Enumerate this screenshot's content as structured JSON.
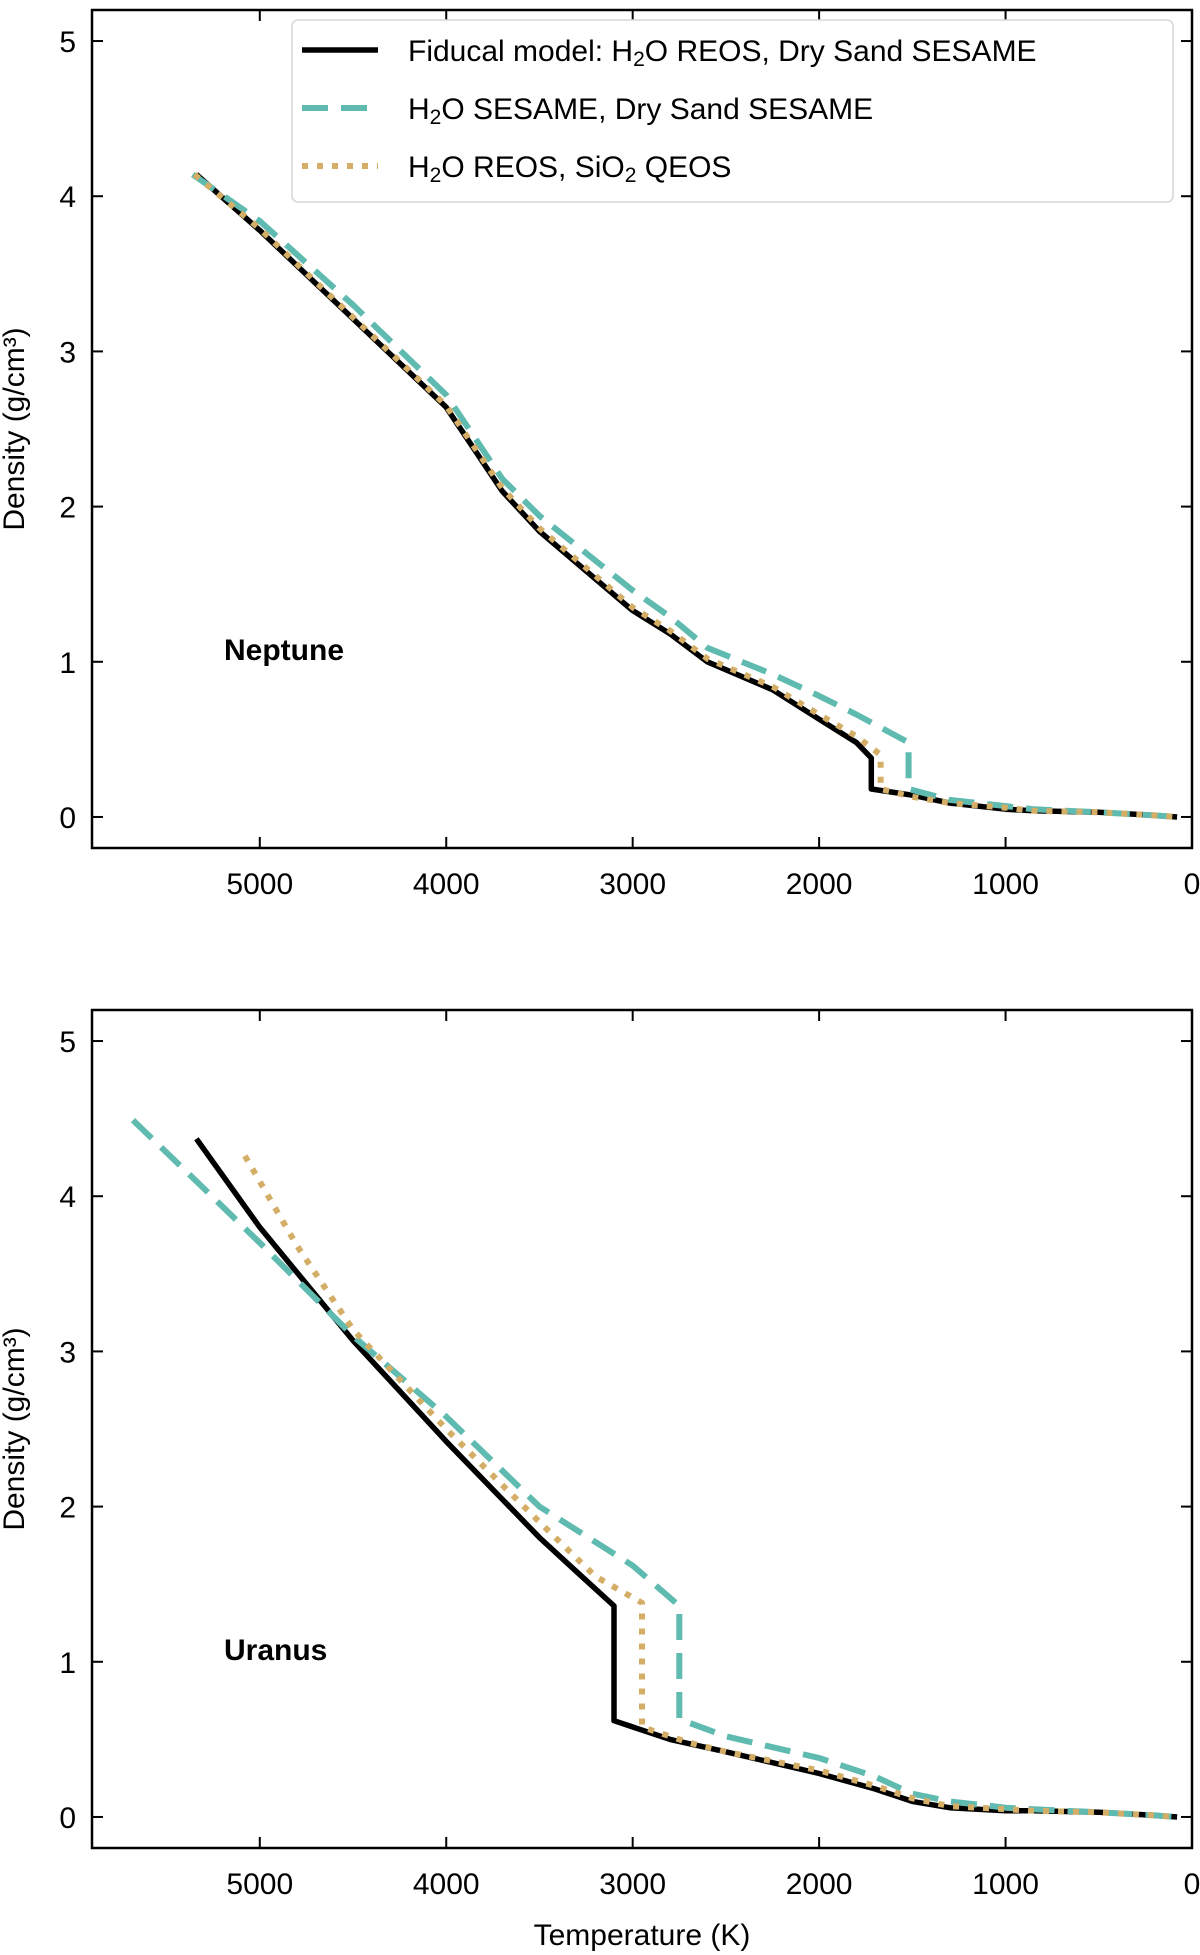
{
  "chart_data": [
    {
      "type": "line",
      "panel_label": "Neptune",
      "xlabel": "",
      "ylabel": "Density (g/cm³)",
      "xlim": [
        5900,
        0
      ],
      "ylim": [
        -0.2,
        5.2
      ],
      "x_ticks": [
        5000,
        4000,
        3000,
        2000,
        1000,
        0
      ],
      "y_ticks": [
        0,
        1,
        2,
        3,
        4,
        5
      ],
      "grid": false,
      "legend_placement": "top-right",
      "legend": [
        {
          "pre": "Fiducal model: H",
          "sub": "2",
          "post": "O REOS, Dry Sand SESAME"
        },
        {
          "pre": "H",
          "sub": "2",
          "post": "O SESAME, Dry Sand SESAME"
        },
        {
          "pre": "H",
          "sub": "2",
          "post": "O REOS, SiO",
          "sub2": "2",
          "post2": " QEOS"
        }
      ],
      "series": [
        {
          "color": "#000000",
          "dash": "solid",
          "points": [
            [
              5340,
              4.14
            ],
            [
              5000,
              3.78
            ],
            [
              4500,
              3.21
            ],
            [
              4000,
              2.64
            ],
            [
              3700,
              2.1
            ],
            [
              3500,
              1.84
            ],
            [
              3000,
              1.33
            ],
            [
              2800,
              1.18
            ],
            [
              2600,
              1.0
            ],
            [
              2250,
              0.82
            ],
            [
              2000,
              0.63
            ],
            [
              1800,
              0.48
            ],
            [
              1720,
              0.38
            ],
            [
              1720,
              0.18
            ],
            [
              1500,
              0.14
            ],
            [
              1300,
              0.09
            ],
            [
              1000,
              0.05
            ],
            [
              850,
              0.04
            ],
            [
              500,
              0.03
            ],
            [
              200,
              0.01
            ],
            [
              80,
              0.0
            ]
          ]
        },
        {
          "color": "#5fbab0",
          "dash": "dashed",
          "points": [
            [
              5360,
              4.14
            ],
            [
              5000,
              3.84
            ],
            [
              4500,
              3.3
            ],
            [
              4000,
              2.72
            ],
            [
              3700,
              2.18
            ],
            [
              3500,
              1.94
            ],
            [
              3000,
              1.46
            ],
            [
              2800,
              1.29
            ],
            [
              2600,
              1.09
            ],
            [
              2250,
              0.92
            ],
            [
              2000,
              0.78
            ],
            [
              1800,
              0.66
            ],
            [
              1520,
              0.48
            ],
            [
              1520,
              0.18
            ],
            [
              1300,
              0.11
            ],
            [
              1000,
              0.07
            ],
            [
              850,
              0.05
            ],
            [
              500,
              0.03
            ],
            [
              200,
              0.01
            ],
            [
              80,
              0.0
            ]
          ]
        },
        {
          "color": "#d4ae66",
          "dash": "dotted",
          "points": [
            [
              5350,
              4.14
            ],
            [
              5000,
              3.79
            ],
            [
              4500,
              3.22
            ],
            [
              4000,
              2.65
            ],
            [
              3700,
              2.12
            ],
            [
              3500,
              1.86
            ],
            [
              3000,
              1.35
            ],
            [
              2800,
              1.2
            ],
            [
              2600,
              1.02
            ],
            [
              2250,
              0.84
            ],
            [
              2000,
              0.66
            ],
            [
              1800,
              0.52
            ],
            [
              1670,
              0.4
            ],
            [
              1670,
              0.18
            ],
            [
              1500,
              0.13
            ],
            [
              1300,
              0.09
            ],
            [
              1000,
              0.06
            ],
            [
              850,
              0.04
            ],
            [
              500,
              0.03
            ],
            [
              200,
              0.01
            ],
            [
              80,
              0.0
            ]
          ]
        }
      ]
    },
    {
      "type": "line",
      "panel_label": "Uranus",
      "xlabel": "Temperature (K)",
      "ylabel": "Density (g/cm³)",
      "xlim": [
        5900,
        0
      ],
      "ylim": [
        -0.2,
        5.2
      ],
      "x_ticks": [
        5000,
        4000,
        3000,
        2000,
        1000,
        0
      ],
      "y_ticks": [
        0,
        1,
        2,
        3,
        4,
        5
      ],
      "grid": false,
      "legend_placement": "",
      "legend": [],
      "series": [
        {
          "color": "#000000",
          "dash": "solid",
          "points": [
            [
              5340,
              4.37
            ],
            [
              5000,
              3.8
            ],
            [
              4500,
              3.07
            ],
            [
              4000,
              2.42
            ],
            [
              3500,
              1.8
            ],
            [
              3300,
              1.58
            ],
            [
              3100,
              1.36
            ],
            [
              3100,
              0.62
            ],
            [
              2800,
              0.5
            ],
            [
              2500,
              0.42
            ],
            [
              2000,
              0.28
            ],
            [
              1700,
              0.18
            ],
            [
              1500,
              0.1
            ],
            [
              1300,
              0.06
            ],
            [
              1000,
              0.04
            ],
            [
              850,
              0.04
            ],
            [
              500,
              0.03
            ],
            [
              200,
              0.01
            ],
            [
              80,
              0.0
            ]
          ]
        },
        {
          "color": "#5fbab0",
          "dash": "dashed",
          "points": [
            [
              5680,
              4.49
            ],
            [
              5300,
              4.05
            ],
            [
              5000,
              3.7
            ],
            [
              4500,
              3.1
            ],
            [
              4000,
              2.58
            ],
            [
              3500,
              2.0
            ],
            [
              3000,
              1.62
            ],
            [
              2750,
              1.36
            ],
            [
              2750,
              0.63
            ],
            [
              2500,
              0.52
            ],
            [
              2000,
              0.38
            ],
            [
              1700,
              0.26
            ],
            [
              1500,
              0.15
            ],
            [
              1300,
              0.1
            ],
            [
              1000,
              0.06
            ],
            [
              850,
              0.05
            ],
            [
              500,
              0.03
            ],
            [
              200,
              0.01
            ],
            [
              80,
              0.0
            ]
          ]
        },
        {
          "color": "#d4ae66",
          "dash": "dotted",
          "points": [
            [
              5080,
              4.26
            ],
            [
              4800,
              3.68
            ],
            [
              4500,
              3.14
            ],
            [
              4000,
              2.5
            ],
            [
              3500,
              1.9
            ],
            [
              3200,
              1.55
            ],
            [
              2950,
              1.38
            ],
            [
              2950,
              0.58
            ],
            [
              2700,
              0.48
            ],
            [
              2500,
              0.42
            ],
            [
              2000,
              0.3
            ],
            [
              1700,
              0.2
            ],
            [
              1500,
              0.12
            ],
            [
              1300,
              0.07
            ],
            [
              1000,
              0.05
            ],
            [
              850,
              0.04
            ],
            [
              500,
              0.03
            ],
            [
              200,
              0.01
            ],
            [
              80,
              0.0
            ]
          ]
        }
      ]
    }
  ]
}
